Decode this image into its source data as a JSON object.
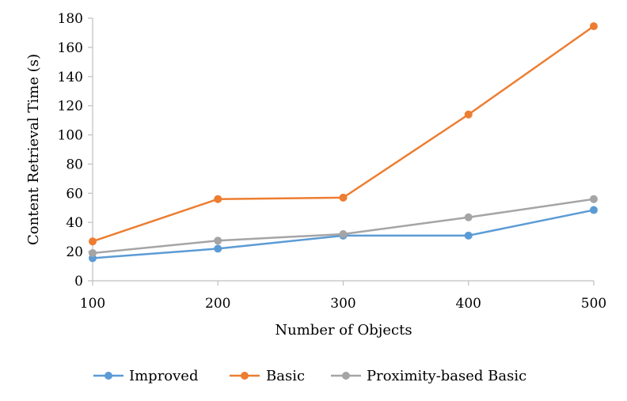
{
  "chart_data": {
    "type": "line",
    "title": "",
    "xlabel": "Number of Objects",
    "ylabel": "Content Retrieval Time (s)",
    "x": [
      100,
      200,
      300,
      400,
      500
    ],
    "ylim": [
      0,
      180
    ],
    "yticks": [
      0,
      20,
      40,
      60,
      80,
      100,
      120,
      140,
      160,
      180
    ],
    "grid": false,
    "legend_position": "bottom",
    "series": [
      {
        "name": "Improved",
        "color": "#5B9BD5",
        "values": [
          15.5,
          22,
          31,
          31,
          48.5
        ]
      },
      {
        "name": "Basic",
        "color": "#ED7D31",
        "values": [
          27,
          56,
          57,
          114,
          174.5
        ]
      },
      {
        "name": "Proximity-based Basic",
        "color": "#A5A5A5",
        "values": [
          19,
          27.5,
          32,
          43.5,
          56
        ]
      }
    ]
  }
}
